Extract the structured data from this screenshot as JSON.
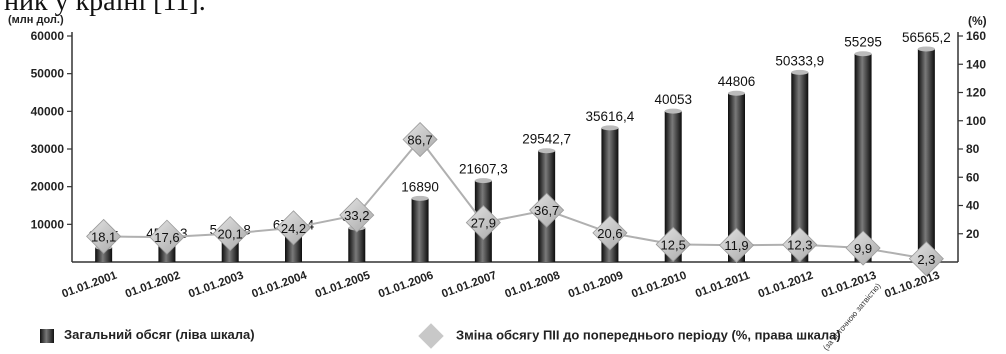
{
  "header_text": "ник у країні [11].",
  "chart_data": {
    "type": "bar",
    "categories": [
      "01.01.2001",
      "01.01.2002",
      "01.01.2003",
      "01.01.2004",
      "01.01.2005",
      "01.01.2006",
      "01.01.2007",
      "01.01.2008",
      "01.01.2009",
      "01.01.2010",
      "01.01.2011",
      "01.01.2012",
      "01.01.2013",
      "01.10.2013"
    ],
    "category_sublabel": {
      "index": 12,
      "text": "(за поточною затвістю)"
    },
    "series": [
      {
        "name": "Загальний обсяг (ліва шкала)",
        "type": "bar",
        "axis": "left",
        "values": [
          3875,
          4555.3,
          5471.8,
          6794.4,
          9047,
          16890,
          21607.3,
          29542.7,
          35616.4,
          40053,
          44806,
          50333.9,
          55295,
          56565.2
        ],
        "labels": [
          "3875",
          "4555,3",
          "5471,8",
          "6794,4",
          "9047",
          "16890",
          "21607,3",
          "29542,7",
          "35616,4",
          "40053",
          "44806",
          "50333,9",
          "55295",
          "56565,2"
        ]
      },
      {
        "name": "Зміна обсягу ПІІ до попереднього періоду (%, права шкала)",
        "type": "line",
        "axis": "right",
        "values": [
          18.1,
          17.6,
          20.1,
          24.2,
          33.2,
          86.7,
          27.9,
          36.7,
          20.6,
          12.5,
          11.9,
          12.3,
          9.9,
          2.3
        ],
        "labels": [
          "18,1",
          "17,6",
          "20,1",
          "24,2",
          "33,2",
          "86,7",
          "27,9",
          "36,7",
          "20,6",
          "12,5",
          "11,9",
          "12,3",
          "9,9",
          "2,3"
        ]
      }
    ],
    "left_axis": {
      "unit": "(млн дол.)",
      "ticks": [
        10000,
        20000,
        30000,
        40000,
        50000,
        60000
      ],
      "ylim": [
        0,
        60000
      ]
    },
    "right_axis": {
      "unit": "(%)",
      "ticks": [
        20,
        40,
        60,
        80,
        100,
        120,
        140,
        160
      ],
      "ylim": [
        0,
        160
      ]
    },
    "legend_position": "bottom",
    "colors": {
      "bar_dark": "#111111",
      "bar_light": "#888888",
      "line": "#b0b0b0",
      "marker": "#c8c8c8"
    }
  }
}
